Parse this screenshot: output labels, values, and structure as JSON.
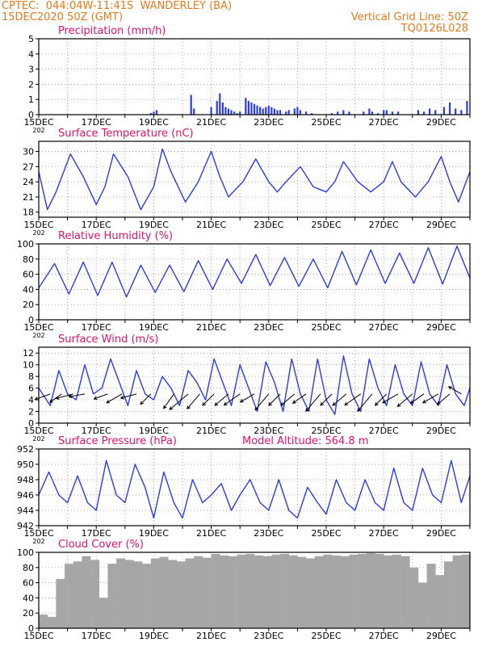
{
  "header": {
    "station": "CPTEC:  044:04W-11:41S  WANDERLEY (BA)",
    "init_time": "15DEC2020 50Z (GMT)",
    "grid_note": "Vertical Grid Line: 50Z",
    "run_id": "TQ0126L028",
    "altitude_note": "Model Altitude: 564.8 m"
  },
  "colors": {
    "header": "#e87a1c",
    "title": "#e0116f",
    "series": "#2b3be6",
    "wind": "#000000",
    "cloud": "#a6a6a6",
    "grid": "#888888"
  },
  "x_axis": {
    "tick_labels": [
      "15DEC",
      "17DEC",
      "19DEC",
      "21DEC",
      "23DEC",
      "25DEC",
      "27DEC",
      "29DEC"
    ],
    "year_label": "202",
    "range_days": [
      0,
      15
    ]
  },
  "chart_data": [
    {
      "type": "bar",
      "title": "Precipitation (mm/h)",
      "ylim": [
        0,
        5
      ],
      "yticks": [
        "0",
        "1",
        "2",
        "3",
        "4",
        "5"
      ],
      "x": [
        3.9,
        4.0,
        4.1,
        5.3,
        5.4,
        6.0,
        6.2,
        6.3,
        6.4,
        6.5,
        6.6,
        6.7,
        6.8,
        6.9,
        7.0,
        7.2,
        7.3,
        7.4,
        7.5,
        7.6,
        7.7,
        7.8,
        7.9,
        8.0,
        8.1,
        8.2,
        8.3,
        8.4,
        8.6,
        8.7,
        8.9,
        9.0,
        9.1,
        9.3,
        9.5,
        10.2,
        10.4,
        10.6,
        10.8,
        11.3,
        11.5,
        11.6,
        11.8,
        12.0,
        12.1,
        12.3,
        12.5,
        13.2,
        13.4,
        13.6,
        13.8,
        14.1,
        14.3,
        14.5,
        14.7,
        14.9
      ],
      "values": [
        0.1,
        0.2,
        0.3,
        1.3,
        0.4,
        0.5,
        0.9,
        1.4,
        0.8,
        0.5,
        0.4,
        0.3,
        0.2,
        0.1,
        0.2,
        1.1,
        0.9,
        0.8,
        0.7,
        0.6,
        0.5,
        0.4,
        0.5,
        0.6,
        0.5,
        0.4,
        0.3,
        0.3,
        0.2,
        0.3,
        0.4,
        0.5,
        0.3,
        0.2,
        0.1,
        0.1,
        0.2,
        0.3,
        0.2,
        0.2,
        0.4,
        0.2,
        0.1,
        0.3,
        0.3,
        0.2,
        0.2,
        0.3,
        0.2,
        0.4,
        0.3,
        0.5,
        0.8,
        0.4,
        0.3,
        0.9
      ]
    },
    {
      "type": "line",
      "title": "Surface Temperature (nC)",
      "ylim": [
        17,
        32
      ],
      "yticks": [
        "18",
        "21",
        "24",
        "27",
        "30"
      ],
      "x": [
        0,
        0.3,
        0.6,
        1.1,
        1.55,
        2.0,
        2.3,
        2.6,
        3.1,
        3.55,
        4.0,
        4.3,
        4.6,
        5.1,
        5.55,
        6.0,
        6.3,
        6.6,
        7.1,
        7.55,
        8.0,
        8.3,
        8.6,
        9.1,
        9.55,
        10.0,
        10.3,
        10.6,
        11.1,
        11.55,
        12.0,
        12.3,
        12.6,
        13.1,
        13.55,
        14.0,
        14.3,
        14.6,
        15.0
      ],
      "values": [
        26,
        18.5,
        22,
        29.5,
        25,
        19.5,
        23,
        29.5,
        25,
        18.5,
        23,
        30.5,
        26,
        20,
        24,
        30,
        25,
        21,
        24,
        28.5,
        24,
        22,
        24,
        27,
        23,
        22,
        24,
        28,
        24,
        22,
        24,
        28,
        24,
        21,
        24,
        29,
        24,
        20,
        26
      ]
    },
    {
      "type": "line",
      "title": "Relative Humidity (%)",
      "ylim": [
        0,
        100
      ],
      "yticks": [
        "0",
        "20",
        "40",
        "60",
        "80",
        "100"
      ],
      "x": [
        0,
        0.55,
        1.05,
        1.55,
        2.05,
        2.55,
        3.05,
        3.55,
        4.05,
        4.55,
        5.05,
        5.55,
        6.05,
        6.55,
        7.05,
        7.55,
        8.05,
        8.55,
        9.05,
        9.55,
        10.05,
        10.55,
        11.05,
        11.55,
        12.05,
        12.55,
        13.05,
        13.55,
        14.05,
        14.55,
        15.0
      ],
      "values": [
        42,
        74,
        34,
        76,
        32,
        76,
        30,
        72,
        36,
        72,
        37,
        78,
        40,
        80,
        48,
        86,
        45,
        82,
        44,
        80,
        42,
        90,
        46,
        92,
        48,
        88,
        48,
        95,
        47,
        97,
        55
      ]
    },
    {
      "type": "line",
      "title": "Surface Wind (m/s)",
      "ylim": [
        0,
        13
      ],
      "yticks": [
        "0",
        "2",
        "4",
        "6",
        "8",
        "10",
        "12"
      ],
      "x": [
        0,
        0.4,
        0.7,
        1.0,
        1.3,
        1.6,
        1.9,
        2.2,
        2.5,
        2.8,
        3.1,
        3.4,
        3.7,
        4.0,
        4.3,
        4.6,
        4.9,
        5.2,
        5.5,
        5.8,
        6.1,
        6.4,
        6.7,
        7.0,
        7.3,
        7.6,
        7.9,
        8.2,
        8.5,
        8.8,
        9.1,
        9.4,
        9.7,
        10.0,
        10.3,
        10.6,
        10.9,
        11.2,
        11.5,
        11.8,
        12.1,
        12.4,
        12.7,
        13.0,
        13.3,
        13.6,
        13.9,
        14.2,
        14.5,
        14.8,
        15.0
      ],
      "values": [
        6,
        3,
        9,
        5,
        4,
        10,
        5,
        6,
        11,
        7,
        3,
        9,
        5,
        4,
        8,
        6,
        3,
        9,
        7,
        4,
        11,
        7,
        3,
        10,
        6,
        2,
        10.5,
        7,
        2,
        11,
        5,
        2,
        11,
        4,
        1.5,
        11.5,
        5,
        2,
        11,
        6,
        3,
        10,
        5,
        3,
        10.5,
        5,
        3,
        10,
        5,
        3,
        6
      ],
      "arrows": {
        "x": [
          0.4,
          0.8,
          1.2,
          1.6,
          2.4,
          2.9,
          3.4,
          3.9,
          4.7,
          5.2,
          5.6,
          6.1,
          6.6,
          7.0,
          7.5,
          8.0,
          8.4,
          8.9,
          9.3,
          9.8,
          10.2,
          10.7,
          11.2,
          11.6,
          12.1,
          12.5,
          13.0,
          13.4,
          13.9,
          14.3,
          14.7
        ],
        "angle_deg": [
          200,
          215,
          195,
          190,
          200,
          210,
          195,
          225,
          235,
          220,
          230,
          225,
          220,
          215,
          210,
          230,
          225,
          220,
          215,
          230,
          225,
          220,
          215,
          230,
          225,
          210,
          220,
          215,
          210,
          220,
          150
        ],
        "length": [
          20,
          18,
          22,
          20,
          18,
          22,
          20,
          18,
          22,
          30,
          24,
          20,
          22,
          24,
          20,
          26,
          20,
          22,
          20,
          28,
          20,
          22,
          24,
          28,
          20,
          22,
          24,
          20,
          22,
          20,
          18
        ]
      }
    },
    {
      "type": "line",
      "title": "Surface Pressure (hPa)",
      "ylim": [
        942,
        952
      ],
      "yticks": [
        "942",
        "944",
        "946",
        "948",
        "950",
        "952"
      ],
      "x": [
        0,
        0.35,
        0.7,
        1.0,
        1.35,
        1.7,
        2.0,
        2.35,
        2.7,
        3.0,
        3.35,
        3.7,
        4.0,
        4.35,
        4.7,
        5.0,
        5.35,
        5.7,
        6.0,
        6.35,
        6.7,
        7.0,
        7.35,
        7.7,
        8.0,
        8.35,
        8.7,
        9.0,
        9.35,
        9.7,
        10.0,
        10.35,
        10.7,
        11.0,
        11.35,
        11.7,
        12.0,
        12.35,
        12.7,
        13.0,
        13.35,
        13.7,
        14.0,
        14.35,
        14.7,
        15.0
      ],
      "values": [
        946,
        949,
        946,
        945,
        948.5,
        945,
        944,
        950.5,
        946,
        945,
        950,
        947,
        943,
        949,
        945,
        943,
        948,
        945,
        946,
        947.5,
        944,
        946,
        948,
        945,
        944,
        948,
        944,
        943,
        947,
        945,
        943.5,
        948,
        945,
        944,
        948,
        945,
        944,
        949.5,
        945,
        944,
        949.5,
        946,
        945,
        950.5,
        945,
        948.5
      ]
    },
    {
      "type": "bar",
      "title": "Cloud Cover (%)",
      "ylim": [
        0,
        100
      ],
      "yticks": [
        "0",
        "20",
        "40",
        "60",
        "80",
        "100"
      ],
      "x": [
        0.0,
        0.3,
        0.6,
        0.9,
        1.2,
        1.5,
        1.8,
        2.1,
        2.4,
        2.7,
        3.0,
        3.3,
        3.6,
        3.9,
        4.2,
        4.5,
        4.8,
        5.1,
        5.4,
        5.7,
        6.0,
        6.3,
        6.6,
        6.9,
        7.2,
        7.5,
        7.8,
        8.1,
        8.4,
        8.7,
        9.0,
        9.3,
        9.6,
        9.9,
        10.2,
        10.5,
        10.8,
        11.1,
        11.4,
        11.7,
        12.0,
        12.3,
        12.6,
        12.9,
        13.2,
        13.5,
        13.8,
        14.1,
        14.4,
        14.7
      ],
      "values": [
        18,
        15,
        65,
        85,
        88,
        95,
        90,
        40,
        85,
        92,
        90,
        88,
        85,
        92,
        94,
        90,
        88,
        92,
        95,
        93,
        98,
        96,
        95,
        97,
        98,
        96,
        95,
        97,
        98,
        96,
        94,
        92,
        95,
        97,
        96,
        95,
        97,
        98,
        99,
        98,
        96,
        97,
        95,
        80,
        60,
        85,
        70,
        88,
        96,
        97
      ]
    }
  ]
}
